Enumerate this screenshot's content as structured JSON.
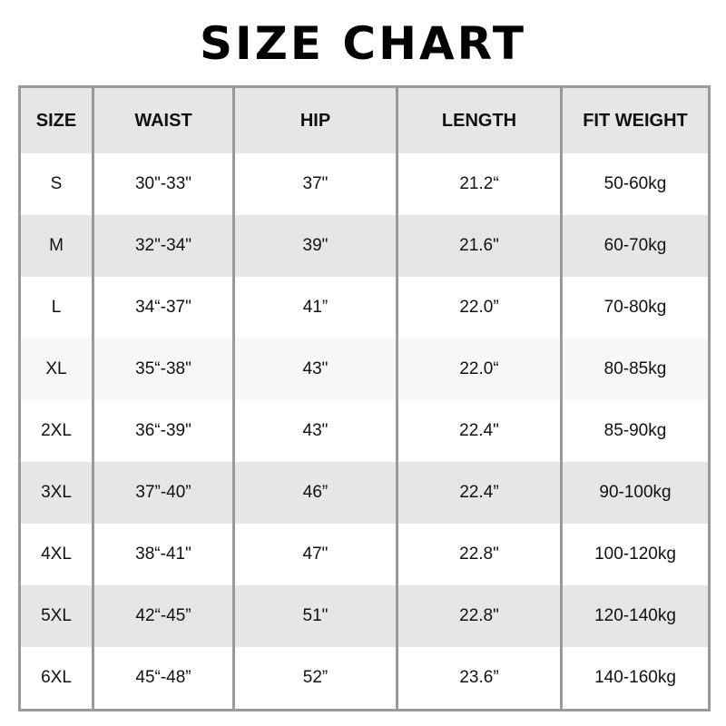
{
  "title": "SIZE CHART",
  "headers": [
    "SIZE",
    "WAIST",
    "HIP",
    "LENGTH",
    "FIT WEIGHT"
  ],
  "rows": [
    [
      "S",
      "30\"-33\"",
      "37\"",
      "21.2“",
      "50-60kg"
    ],
    [
      "M",
      "32\"-34\"",
      "39\"",
      "21.6\"",
      "60-70kg"
    ],
    [
      "L",
      "34“-37\"",
      "41”",
      "22.0”",
      "70-80kg"
    ],
    [
      "XL",
      "35“-38\"",
      "43\"",
      "22.0“",
      "80-85kg"
    ],
    [
      "2XL",
      "36“-39\"",
      "43\"",
      "22.4\"",
      "85-90kg"
    ],
    [
      "3XL",
      "37”-40”",
      "46”",
      "22.4”",
      "90-100kg"
    ],
    [
      "4XL",
      "38“-41\"",
      "47\"",
      "22.8\"",
      "100-120kg"
    ],
    [
      "5XL",
      "42“-45”",
      "51\"",
      "22.8\"",
      "120-140kg"
    ],
    [
      "6XL",
      "45“-48”",
      "52”",
      "23.6”",
      "140-160kg"
    ]
  ],
  "colors": {
    "header_bg": "#e6e6e6",
    "border": "#9a9a9a",
    "stripe": "#e6e6e6"
  }
}
